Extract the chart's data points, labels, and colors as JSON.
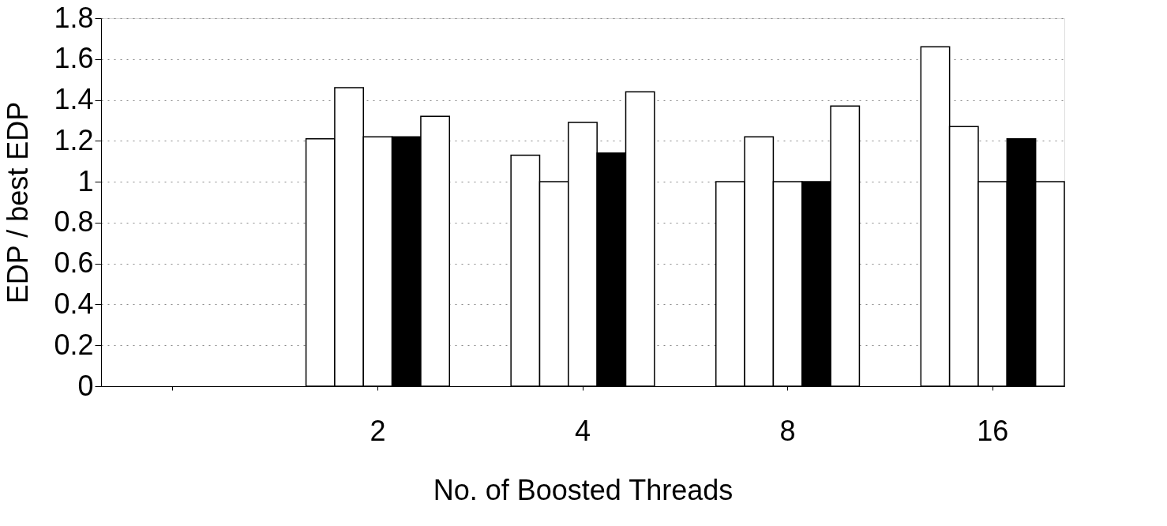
{
  "chart_data": {
    "type": "bar",
    "xlabel": "No. of Boosted Threads",
    "ylabel": "EDP / best EDP",
    "categories": [
      null,
      "2",
      "4",
      "8",
      "16"
    ],
    "series": [
      {
        "color": "#ffffff",
        "values": [
          null,
          1.21,
          1.13,
          1.0,
          1.66
        ]
      },
      {
        "color": "#ffffff",
        "values": [
          null,
          1.46,
          1.0,
          1.22,
          1.27
        ]
      },
      {
        "color": "#ffffff",
        "values": [
          null,
          1.22,
          1.29,
          1.0,
          1.0
        ]
      },
      {
        "color": "#000000",
        "values": [
          null,
          1.22,
          1.14,
          1.0,
          1.21
        ]
      },
      {
        "color": "#ffffff",
        "values": [
          null,
          1.32,
          1.44,
          1.37,
          1.0
        ]
      }
    ],
    "ylim": [
      0,
      1.8
    ],
    "yticks": [
      0,
      0.2,
      0.4,
      0.6,
      0.8,
      1,
      1.2,
      1.4,
      1.6,
      1.8
    ],
    "grid": "y",
    "legend": false
  }
}
